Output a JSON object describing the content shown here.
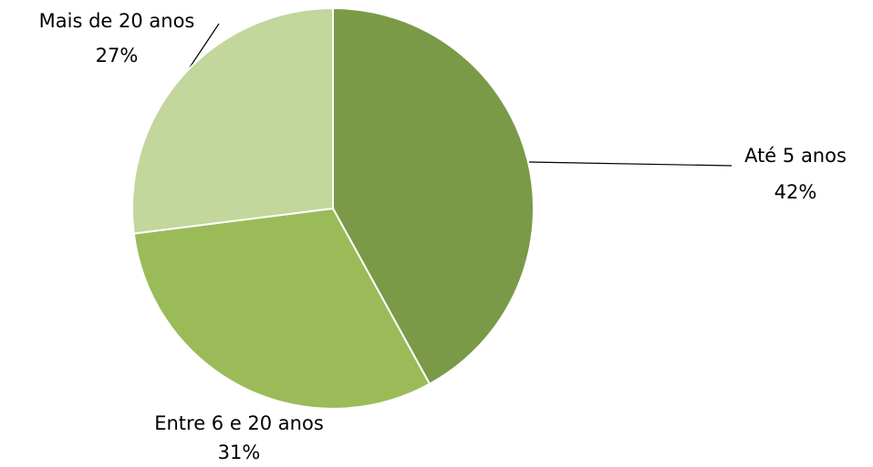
{
  "chart_data": {
    "type": "pie",
    "categories": [
      "Até 5 anos",
      "Entre 6 e 20 anos",
      "Mais de 20 anos"
    ],
    "values": [
      42,
      31,
      27
    ],
    "value_labels": [
      "42%",
      "31%",
      "27%"
    ],
    "colors": [
      "#7a9a48",
      "#9bbb59",
      "#c3d69b"
    ]
  }
}
